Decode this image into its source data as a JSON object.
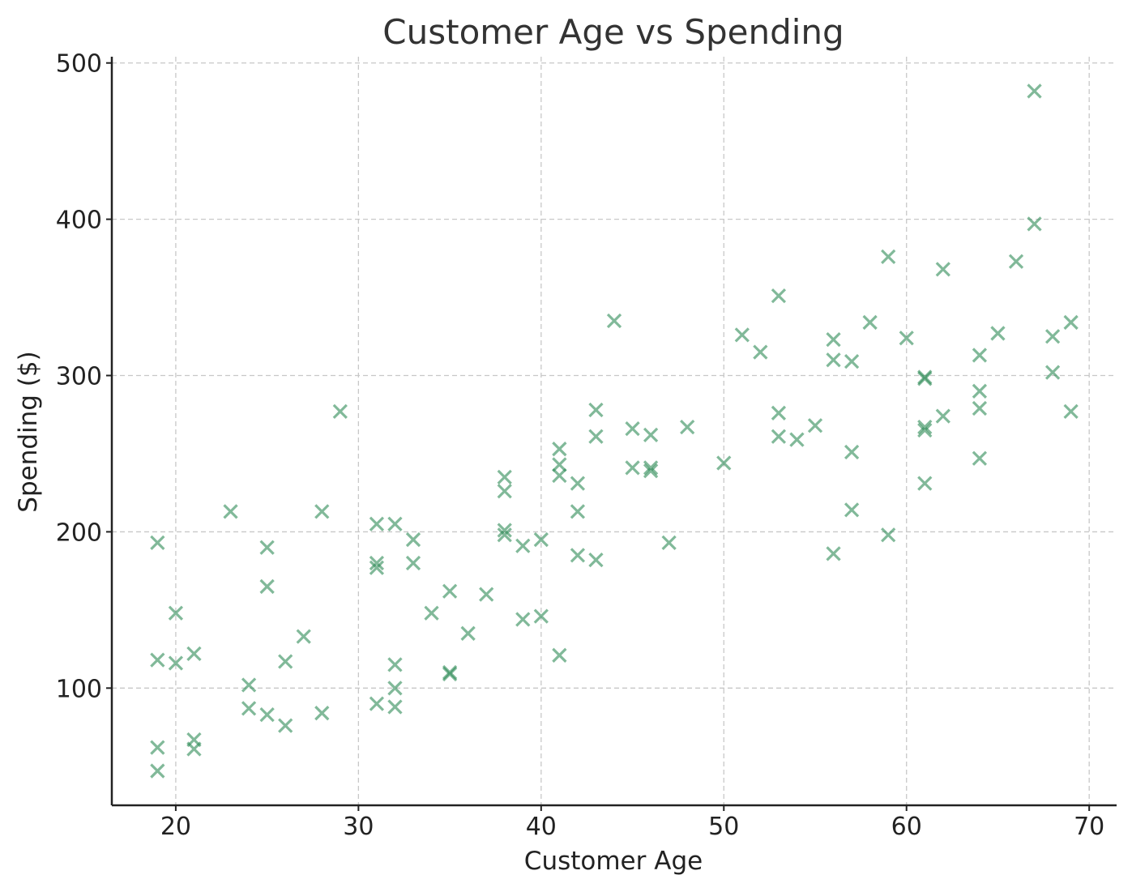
{
  "chart_data": {
    "type": "scatter",
    "title": "Customer Age vs Spending",
    "xlabel": "Customer Age",
    "ylabel": "Spending ($)",
    "xlim": [
      16.5,
      71.5
    ],
    "ylim": [
      25,
      504
    ],
    "xticks": [
      20,
      30,
      40,
      50,
      60,
      70
    ],
    "yticks": [
      100,
      200,
      300,
      400,
      500
    ],
    "grid": true,
    "marker": "x",
    "color": "#2e8b57",
    "series": [
      {
        "points": [
          [
            19,
            193
          ],
          [
            19,
            118
          ],
          [
            19,
            62
          ],
          [
            19,
            47
          ],
          [
            20,
            148
          ],
          [
            20,
            116
          ],
          [
            21,
            122
          ],
          [
            21,
            67
          ],
          [
            21,
            61
          ],
          [
            23,
            213
          ],
          [
            24,
            102
          ],
          [
            24,
            87
          ],
          [
            25,
            190
          ],
          [
            25,
            165
          ],
          [
            25,
            83
          ],
          [
            26,
            117
          ],
          [
            26,
            76
          ],
          [
            27,
            133
          ],
          [
            28,
            213
          ],
          [
            28,
            84
          ],
          [
            29,
            277
          ],
          [
            31,
            205
          ],
          [
            31,
            180
          ],
          [
            31,
            177
          ],
          [
            31,
            90
          ],
          [
            32,
            205
          ],
          [
            32,
            115
          ],
          [
            32,
            100
          ],
          [
            32,
            88
          ],
          [
            33,
            195
          ],
          [
            33,
            180
          ],
          [
            34,
            148
          ],
          [
            35,
            162
          ],
          [
            35,
            110
          ],
          [
            35,
            109
          ],
          [
            36,
            135
          ],
          [
            37,
            160
          ],
          [
            38,
            235
          ],
          [
            38,
            226
          ],
          [
            38,
            201
          ],
          [
            38,
            198
          ],
          [
            39,
            191
          ],
          [
            39,
            144
          ],
          [
            40,
            195
          ],
          [
            40,
            146
          ],
          [
            41,
            253
          ],
          [
            41,
            243
          ],
          [
            41,
            236
          ],
          [
            41,
            121
          ],
          [
            42,
            231
          ],
          [
            42,
            213
          ],
          [
            42,
            185
          ],
          [
            43,
            278
          ],
          [
            43,
            261
          ],
          [
            43,
            182
          ],
          [
            44,
            335
          ],
          [
            45,
            266
          ],
          [
            45,
            241
          ],
          [
            46,
            262
          ],
          [
            46,
            241
          ],
          [
            46,
            239
          ],
          [
            47,
            193
          ],
          [
            48,
            267
          ],
          [
            50,
            244
          ],
          [
            51,
            326
          ],
          [
            52,
            315
          ],
          [
            53,
            351
          ],
          [
            53,
            276
          ],
          [
            53,
            261
          ],
          [
            54,
            259
          ],
          [
            55,
            268
          ],
          [
            56,
            323
          ],
          [
            56,
            310
          ],
          [
            56,
            186
          ],
          [
            57,
            309
          ],
          [
            57,
            251
          ],
          [
            57,
            214
          ],
          [
            58,
            334
          ],
          [
            59,
            376
          ],
          [
            59,
            198
          ],
          [
            60,
            324
          ],
          [
            61,
            299
          ],
          [
            61,
            298
          ],
          [
            61,
            267
          ],
          [
            61,
            265
          ],
          [
            61,
            231
          ],
          [
            62,
            368
          ],
          [
            62,
            274
          ],
          [
            64,
            313
          ],
          [
            64,
            290
          ],
          [
            64,
            279
          ],
          [
            64,
            247
          ],
          [
            65,
            327
          ],
          [
            66,
            373
          ],
          [
            67,
            482
          ],
          [
            67,
            397
          ],
          [
            68,
            325
          ],
          [
            68,
            302
          ],
          [
            69,
            334
          ],
          [
            69,
            277
          ]
        ]
      }
    ]
  }
}
